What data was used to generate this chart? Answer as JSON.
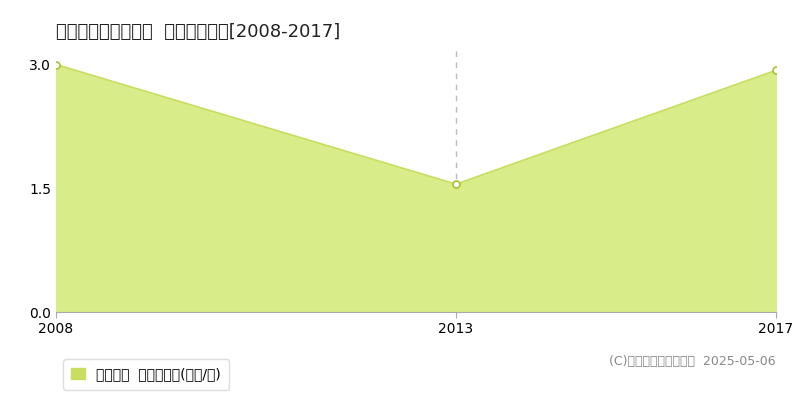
{
  "title": "足寄郡足寄町南三条  土地価格推移[2008-2017]",
  "x_values": [
    2008,
    2013,
    2017
  ],
  "y_values": [
    3.0,
    1.55,
    2.93
  ],
  "fill_color": "#d8ed8a",
  "line_color": "#c8de60",
  "point_color": "#ffffff",
  "point_edge_color": "#aac030",
  "vline_x": 2013,
  "vline_color": "#bbbbbb",
  "hline_y": 1.5,
  "hline_color": "#bbbbbb",
  "xlim": [
    2008,
    2017
  ],
  "ylim": [
    0,
    3.2
  ],
  "yticks": [
    0,
    1.5,
    3
  ],
  "xticks": [
    2008,
    2013,
    2017
  ],
  "background_color": "#ffffff",
  "legend_label": "土地価格  平均坪単価(万円/坪)",
  "legend_color": "#c8de60",
  "copyright_text": "(C)土地価格ドットコム  2025-05-06",
  "title_fontsize": 13,
  "tick_fontsize": 10,
  "legend_fontsize": 10,
  "copyright_fontsize": 9
}
